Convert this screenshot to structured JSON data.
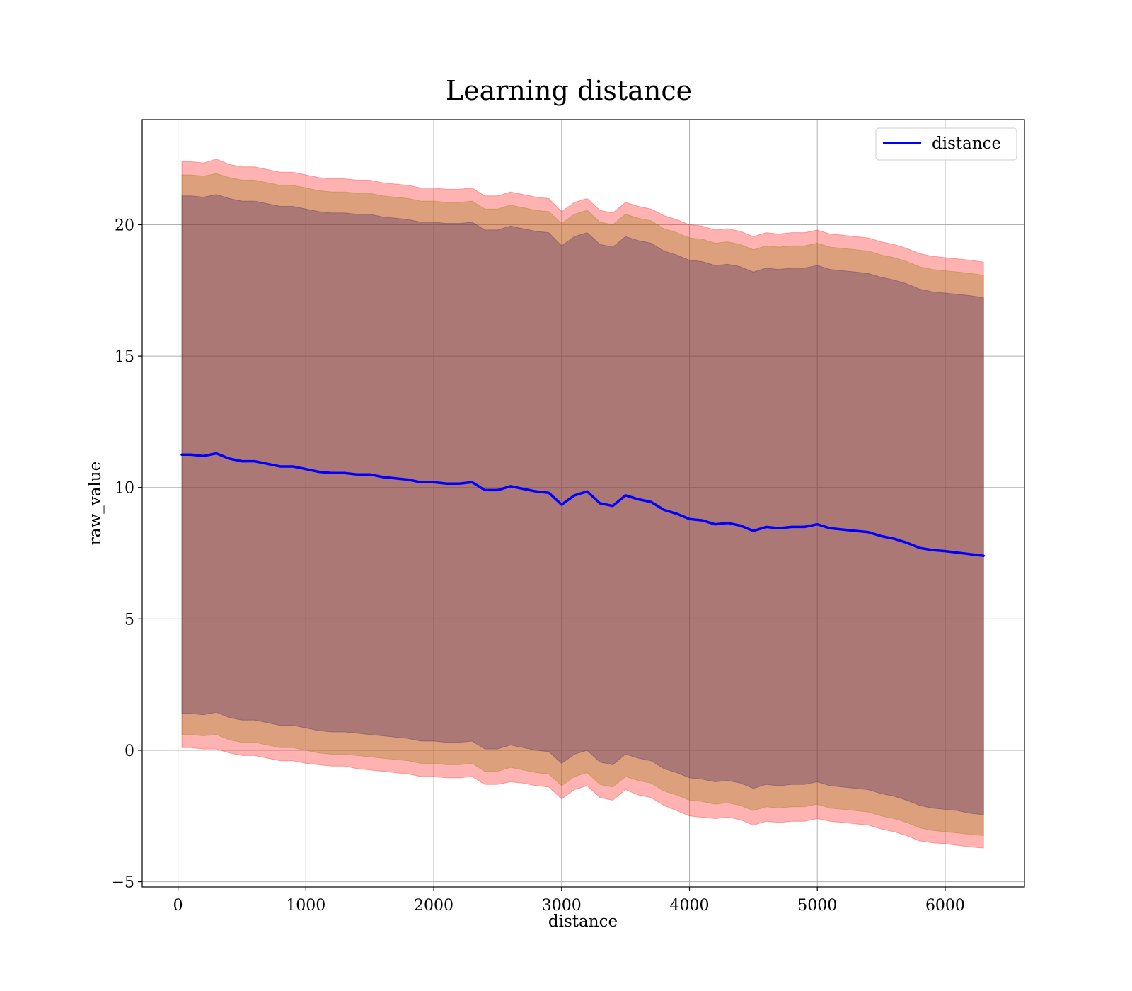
{
  "chart_data": {
    "type": "line",
    "title": "Learning distance",
    "xlabel": "distance",
    "ylabel": "raw_value",
    "xlim": [
      -280,
      6620
    ],
    "ylim": [
      -5.2,
      24.0
    ],
    "xticks": [
      0,
      1000,
      2000,
      3000,
      4000,
      5000,
      6000
    ],
    "yticks": [
      -5,
      0,
      5,
      10,
      15,
      20
    ],
    "xtick_labels": [
      "0",
      "1000",
      "2000",
      "3000",
      "4000",
      "5000",
      "6000"
    ],
    "ytick_labels": [
      "−5",
      "0",
      "5",
      "10",
      "15",
      "20"
    ],
    "grid": true,
    "legend": {
      "position": "top-right",
      "entries": [
        "distance"
      ]
    },
    "colors": {
      "line": "#0000ff",
      "band_outer": "#ff0000",
      "band_middle": "#8a7a00",
      "band_inner": "#3a1a6a",
      "grid": "#b0b0b0"
    },
    "series": [
      {
        "name": "distance",
        "x": [
          30,
          100,
          200,
          300,
          400,
          500,
          600,
          700,
          800,
          900,
          1000,
          1100,
          1200,
          1300,
          1400,
          1500,
          1600,
          1700,
          1800,
          1900,
          2000,
          2100,
          2200,
          2300,
          2400,
          2500,
          2600,
          2700,
          2800,
          2900,
          3000,
          3100,
          3200,
          3300,
          3400,
          3500,
          3600,
          3700,
          3800,
          3900,
          4000,
          4100,
          4200,
          4300,
          4400,
          4500,
          4600,
          4700,
          4800,
          4900,
          5000,
          5100,
          5200,
          5300,
          5400,
          5500,
          5600,
          5700,
          5800,
          5900,
          6000,
          6100,
          6200,
          6300
        ],
        "y": [
          11.25,
          11.25,
          11.2,
          11.3,
          11.1,
          11.0,
          11.0,
          10.9,
          10.8,
          10.8,
          10.7,
          10.6,
          10.55,
          10.55,
          10.5,
          10.5,
          10.4,
          10.35,
          10.3,
          10.2,
          10.2,
          10.15,
          10.15,
          10.2,
          9.9,
          9.9,
          10.05,
          9.95,
          9.85,
          9.8,
          9.35,
          9.7,
          9.85,
          9.4,
          9.3,
          9.7,
          9.55,
          9.45,
          9.15,
          9.0,
          8.8,
          8.75,
          8.6,
          8.65,
          8.55,
          8.35,
          8.5,
          8.45,
          8.5,
          8.5,
          8.6,
          8.45,
          8.4,
          8.35,
          8.3,
          8.15,
          8.05,
          7.9,
          7.7,
          7.62,
          7.58,
          7.52,
          7.46,
          7.4
        ]
      }
    ],
    "bands": [
      {
        "name": "outer",
        "lower": [
          0.1,
          0.1,
          0.05,
          0.05,
          -0.1,
          -0.2,
          -0.2,
          -0.3,
          -0.4,
          -0.4,
          -0.5,
          -0.55,
          -0.6,
          -0.6,
          -0.7,
          -0.75,
          -0.8,
          -0.85,
          -0.9,
          -1.0,
          -1.0,
          -1.05,
          -1.05,
          -1.0,
          -1.3,
          -1.3,
          -1.2,
          -1.25,
          -1.35,
          -1.4,
          -1.85,
          -1.5,
          -1.35,
          -1.8,
          -1.9,
          -1.5,
          -1.7,
          -1.8,
          -2.1,
          -2.3,
          -2.5,
          -2.55,
          -2.6,
          -2.55,
          -2.65,
          -2.85,
          -2.7,
          -2.75,
          -2.7,
          -2.7,
          -2.6,
          -2.7,
          -2.75,
          -2.8,
          -2.85,
          -3.0,
          -3.1,
          -3.25,
          -3.45,
          -3.52,
          -3.56,
          -3.62,
          -3.68,
          -3.72
        ],
        "upper": [
          22.4,
          22.4,
          22.35,
          22.5,
          22.3,
          22.2,
          22.2,
          22.1,
          22.0,
          22.0,
          21.9,
          21.8,
          21.75,
          21.75,
          21.7,
          21.7,
          21.6,
          21.55,
          21.5,
          21.4,
          21.4,
          21.35,
          21.35,
          21.4,
          21.1,
          21.1,
          21.25,
          21.15,
          21.05,
          21.0,
          20.5,
          20.85,
          21.0,
          20.55,
          20.45,
          20.85,
          20.7,
          20.6,
          20.35,
          20.2,
          20.0,
          19.95,
          19.8,
          19.85,
          19.75,
          19.55,
          19.7,
          19.65,
          19.7,
          19.7,
          19.8,
          19.65,
          19.6,
          19.55,
          19.5,
          19.35,
          19.25,
          19.1,
          18.9,
          18.8,
          18.75,
          18.7,
          18.65,
          18.58
        ]
      },
      {
        "name": "middle",
        "lower": [
          0.6,
          0.6,
          0.55,
          0.6,
          0.4,
          0.3,
          0.3,
          0.2,
          0.1,
          0.1,
          0.0,
          -0.1,
          -0.15,
          -0.15,
          -0.2,
          -0.25,
          -0.3,
          -0.35,
          -0.4,
          -0.5,
          -0.5,
          -0.55,
          -0.55,
          -0.5,
          -0.8,
          -0.8,
          -0.65,
          -0.75,
          -0.85,
          -0.9,
          -1.35,
          -1.0,
          -0.85,
          -1.3,
          -1.4,
          -1.0,
          -1.15,
          -1.25,
          -1.55,
          -1.7,
          -1.9,
          -1.95,
          -2.05,
          -2.0,
          -2.1,
          -2.3,
          -2.15,
          -2.2,
          -2.15,
          -2.15,
          -2.05,
          -2.2,
          -2.25,
          -2.3,
          -2.35,
          -2.5,
          -2.6,
          -2.75,
          -2.95,
          -3.05,
          -3.1,
          -3.15,
          -3.2,
          -3.25
        ],
        "upper": [
          21.9,
          21.9,
          21.85,
          21.95,
          21.8,
          21.7,
          21.7,
          21.6,
          21.5,
          21.5,
          21.4,
          21.3,
          21.25,
          21.25,
          21.2,
          21.2,
          21.1,
          21.05,
          21.0,
          20.9,
          20.9,
          20.85,
          20.85,
          20.9,
          20.6,
          20.6,
          20.75,
          20.65,
          20.55,
          20.5,
          20.05,
          20.4,
          20.55,
          20.1,
          20.0,
          20.4,
          20.25,
          20.15,
          19.85,
          19.7,
          19.5,
          19.45,
          19.3,
          19.35,
          19.25,
          19.05,
          19.2,
          19.15,
          19.2,
          19.2,
          19.3,
          19.15,
          19.1,
          19.05,
          19.0,
          18.85,
          18.75,
          18.6,
          18.4,
          18.3,
          18.25,
          18.2,
          18.15,
          18.08
        ]
      },
      {
        "name": "inner",
        "lower": [
          1.4,
          1.4,
          1.35,
          1.45,
          1.25,
          1.15,
          1.15,
          1.05,
          0.95,
          0.95,
          0.85,
          0.75,
          0.7,
          0.7,
          0.65,
          0.6,
          0.55,
          0.5,
          0.45,
          0.35,
          0.35,
          0.3,
          0.3,
          0.35,
          0.05,
          0.05,
          0.2,
          0.1,
          0.0,
          -0.05,
          -0.5,
          -0.15,
          0.0,
          -0.45,
          -0.55,
          -0.15,
          -0.3,
          -0.4,
          -0.7,
          -0.85,
          -1.05,
          -1.1,
          -1.2,
          -1.15,
          -1.25,
          -1.45,
          -1.3,
          -1.35,
          -1.3,
          -1.3,
          -1.2,
          -1.35,
          -1.4,
          -1.45,
          -1.5,
          -1.65,
          -1.75,
          -1.9,
          -2.1,
          -2.2,
          -2.25,
          -2.3,
          -2.4,
          -2.45
        ],
        "upper": [
          21.1,
          21.1,
          21.05,
          21.15,
          21.0,
          20.9,
          20.9,
          20.8,
          20.7,
          20.7,
          20.6,
          20.5,
          20.45,
          20.45,
          20.4,
          20.4,
          20.3,
          20.25,
          20.2,
          20.1,
          20.1,
          20.05,
          20.05,
          20.1,
          19.8,
          19.8,
          19.95,
          19.85,
          19.75,
          19.7,
          19.2,
          19.55,
          19.7,
          19.25,
          19.15,
          19.55,
          19.4,
          19.3,
          19.0,
          18.85,
          18.65,
          18.6,
          18.45,
          18.5,
          18.4,
          18.2,
          18.35,
          18.3,
          18.35,
          18.35,
          18.45,
          18.3,
          18.25,
          18.2,
          18.15,
          18.0,
          17.9,
          17.75,
          17.55,
          17.45,
          17.4,
          17.35,
          17.3,
          17.22
        ]
      }
    ]
  }
}
